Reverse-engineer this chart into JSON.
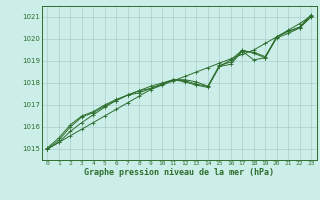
{
  "title": "Graphe pression niveau de la mer (hPa)",
  "background_color": "#cceee8",
  "grid_color": "#aacccc",
  "line_color": "#2d6e2d",
  "marker_color": "#2d6e2d",
  "xlim": [
    -0.5,
    23.5
  ],
  "ylim": [
    1014.5,
    1021.5
  ],
  "yticks": [
    1015,
    1016,
    1017,
    1018,
    1019,
    1020,
    1021
  ],
  "xticks": [
    0,
    1,
    2,
    3,
    4,
    5,
    6,
    7,
    8,
    9,
    10,
    11,
    12,
    13,
    14,
    15,
    16,
    17,
    18,
    19,
    20,
    21,
    22,
    23
  ],
  "series": [
    [
      1015.0,
      1015.3,
      1015.6,
      1015.9,
      1016.2,
      1016.5,
      1016.8,
      1017.1,
      1017.4,
      1017.7,
      1017.9,
      1018.1,
      1018.3,
      1018.5,
      1018.7,
      1018.9,
      1019.1,
      1019.3,
      1019.5,
      1019.8,
      1020.1,
      1020.4,
      1020.7,
      1021.05
    ],
    [
      1015.0,
      1015.3,
      1015.8,
      1016.2,
      1016.55,
      1016.9,
      1017.2,
      1017.45,
      1017.55,
      1017.75,
      1017.95,
      1018.15,
      1018.1,
      1017.95,
      1017.85,
      1018.75,
      1018.85,
      1019.45,
      1019.05,
      1019.15,
      1020.05,
      1020.25,
      1020.5,
      1021.0
    ],
    [
      1015.0,
      1015.4,
      1016.0,
      1016.45,
      1016.65,
      1016.95,
      1017.2,
      1017.45,
      1017.65,
      1017.75,
      1017.95,
      1018.15,
      1018.05,
      1017.9,
      1017.8,
      1018.75,
      1019.05,
      1019.5,
      1019.35,
      1019.15,
      1020.1,
      1020.35,
      1020.5,
      1021.05
    ],
    [
      1015.05,
      1015.5,
      1016.1,
      1016.5,
      1016.7,
      1017.0,
      1017.25,
      1017.45,
      1017.65,
      1017.85,
      1018.0,
      1018.15,
      1018.15,
      1018.05,
      1017.85,
      1018.8,
      1018.95,
      1019.45,
      1019.4,
      1019.2,
      1020.1,
      1020.35,
      1020.55,
      1021.1
    ]
  ]
}
